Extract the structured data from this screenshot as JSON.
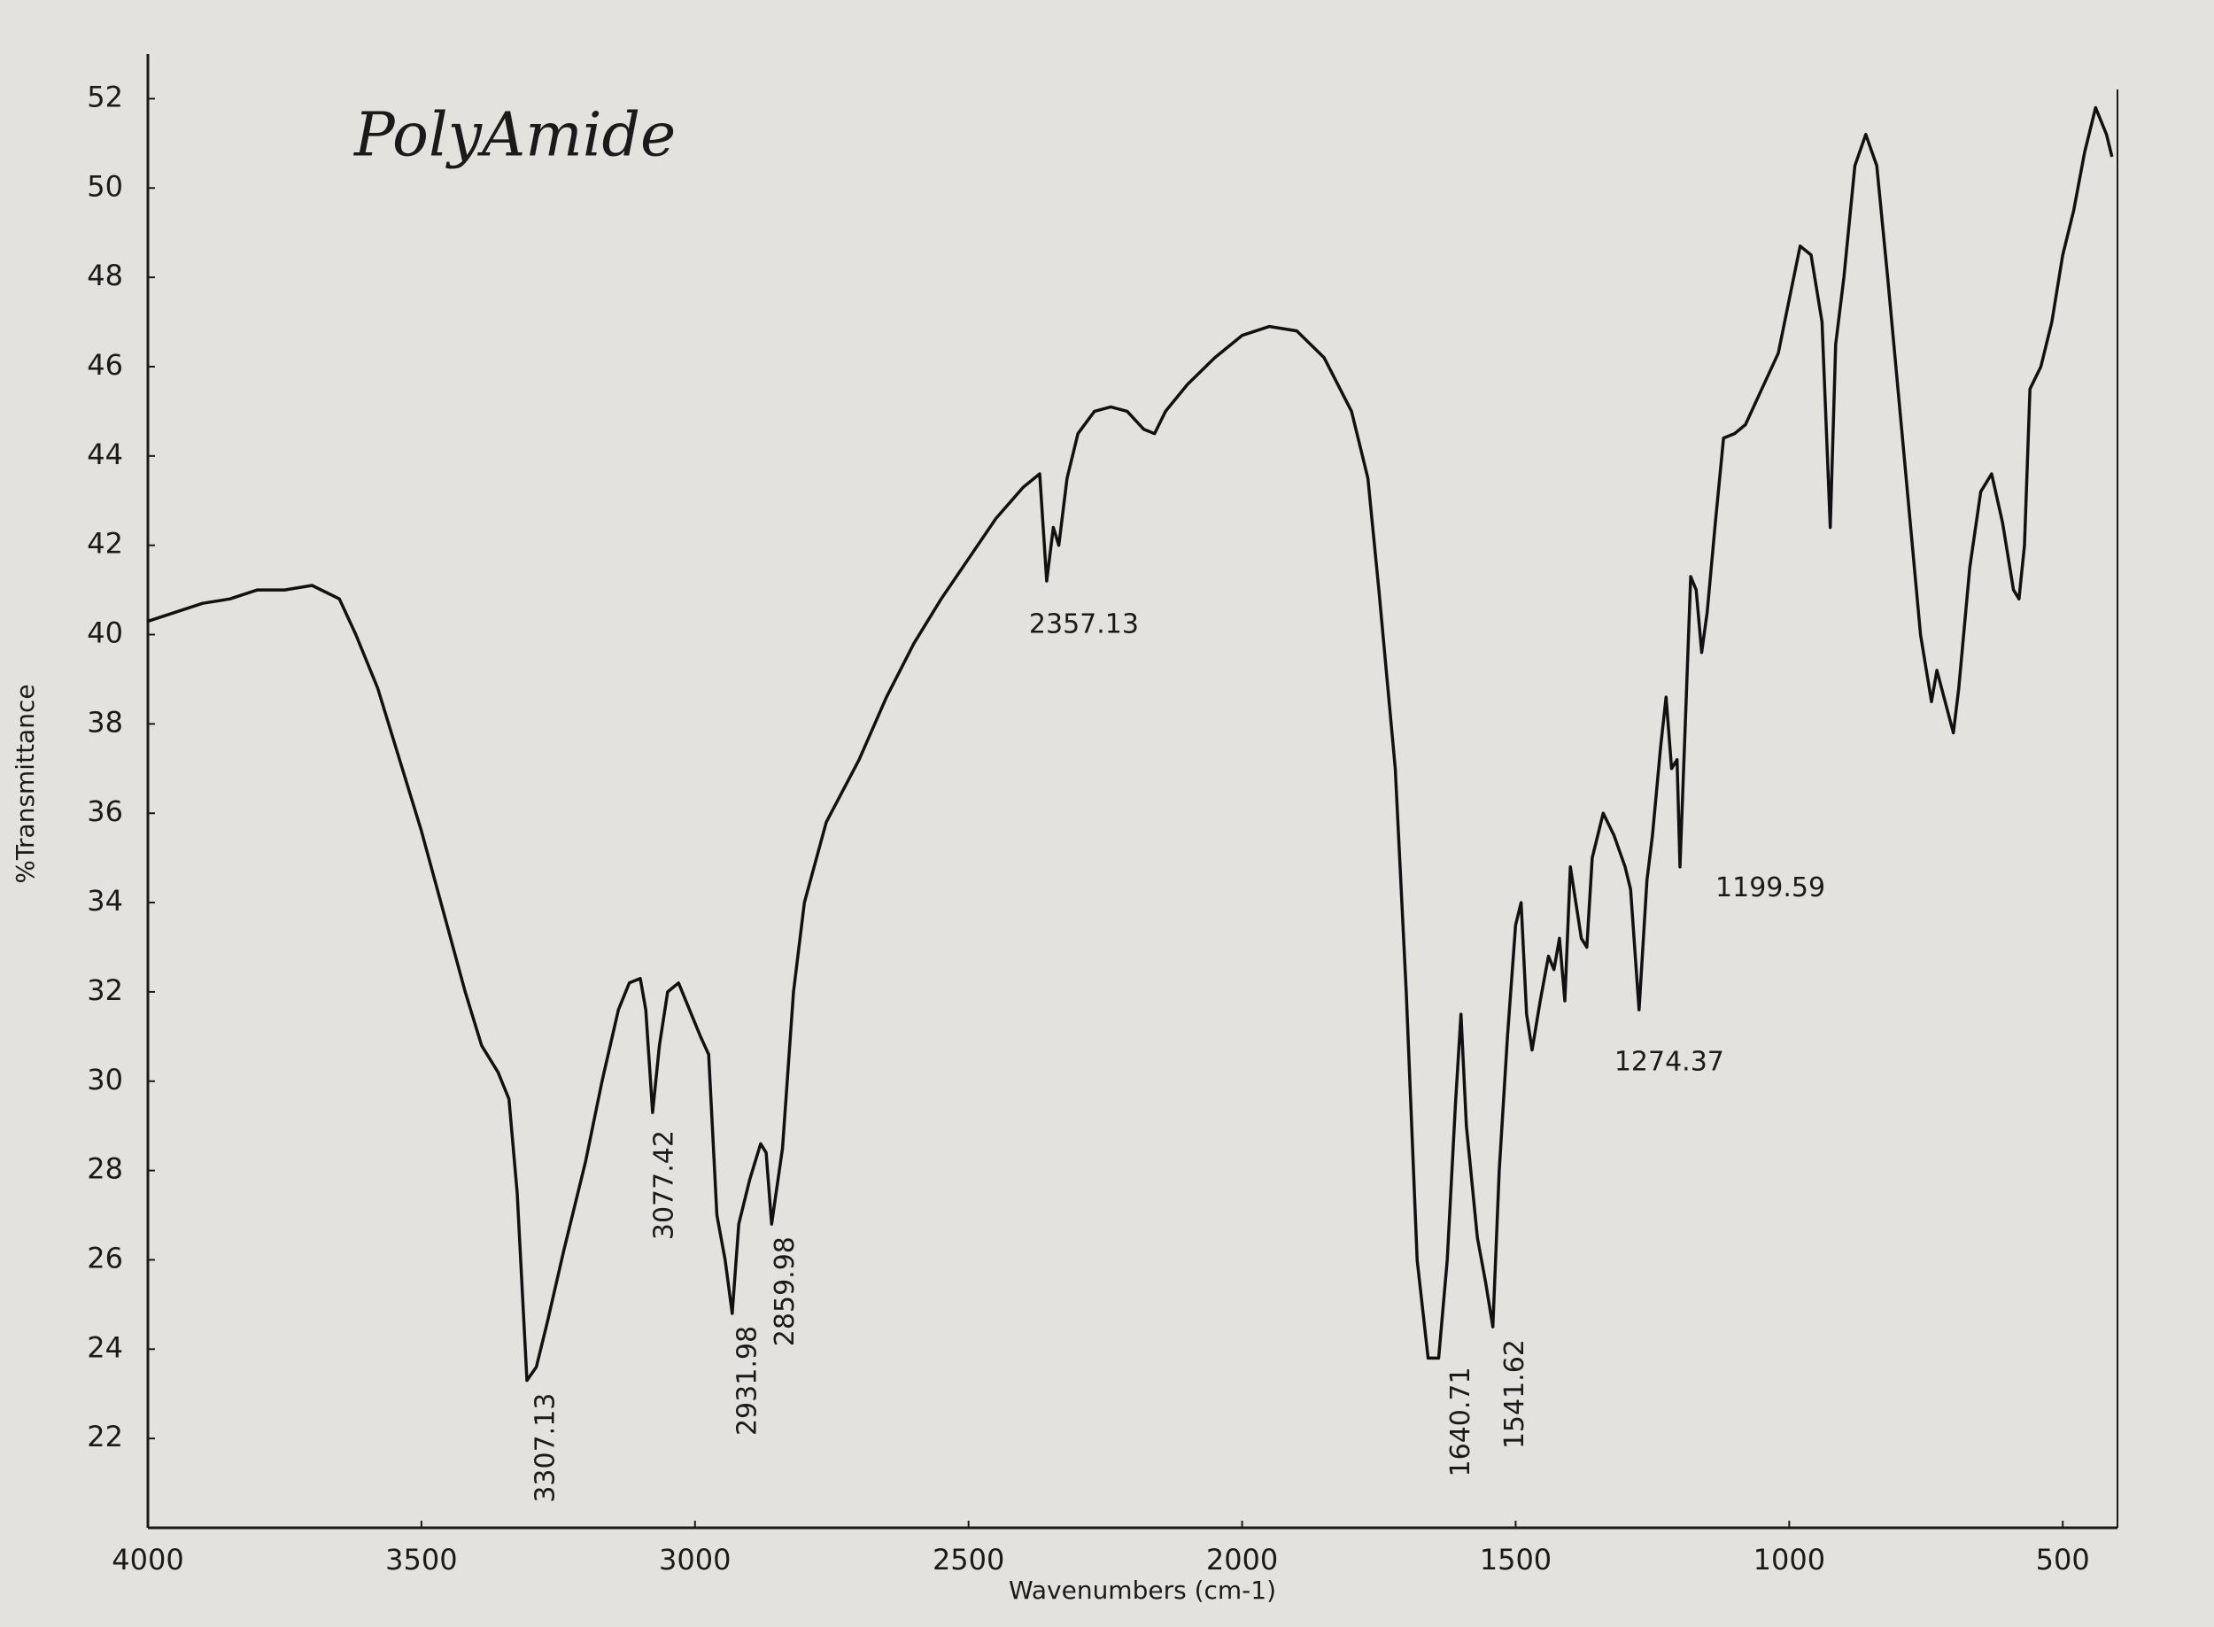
{
  "chart_data": {
    "type": "line",
    "title": "PolyAmide",
    "x_label": "Wavenumbers (cm-1)",
    "y_label": "%Transmittance",
    "xlim": [
      4000,
      400
    ],
    "ylim": [
      20,
      53
    ],
    "xticks": [
      4000,
      3500,
      3000,
      2500,
      2000,
      1500,
      1000,
      500
    ],
    "yticks": [
      22,
      24,
      26,
      28,
      30,
      32,
      34,
      36,
      38,
      40,
      42,
      44,
      46,
      48,
      50,
      52
    ],
    "grid": false,
    "color": "#111111",
    "x": [
      4000,
      3950,
      3900,
      3850,
      3800,
      3750,
      3700,
      3650,
      3620,
      3580,
      3540,
      3500,
      3460,
      3420,
      3390,
      3360,
      3340,
      3325,
      3307.13,
      3290,
      3270,
      3240,
      3200,
      3170,
      3140,
      3120,
      3100,
      3090,
      3077.42,
      3065,
      3050,
      3030,
      3010,
      2990,
      2975,
      2960,
      2945,
      2931.98,
      2920,
      2900,
      2880,
      2870,
      2859.98,
      2840,
      2820,
      2800,
      2760,
      2700,
      2650,
      2600,
      2550,
      2500,
      2450,
      2400,
      2370,
      2357.13,
      2345,
      2335,
      2320,
      2300,
      2270,
      2240,
      2210,
      2180,
      2160,
      2140,
      2100,
      2050,
      2000,
      1950,
      1900,
      1850,
      1800,
      1770,
      1750,
      1720,
      1700,
      1680,
      1660,
      1640.71,
      1625,
      1610,
      1600,
      1590,
      1570,
      1555,
      1541.62,
      1530,
      1515,
      1500,
      1490,
      1480,
      1470,
      1455,
      1440,
      1430,
      1420,
      1410,
      1400,
      1390,
      1380,
      1370,
      1360,
      1340,
      1320,
      1300,
      1290,
      1274.37,
      1260,
      1250,
      1235,
      1225,
      1215,
      1205,
      1199.59,
      1190,
      1180,
      1170,
      1160,
      1150,
      1135,
      1120,
      1100,
      1080,
      1050,
      1020,
      1000,
      980,
      960,
      940,
      925,
      915,
      900,
      880,
      860,
      840,
      820,
      790,
      760,
      740,
      730,
      715,
      700,
      690,
      670,
      650,
      630,
      610,
      590,
      580,
      570,
      560,
      540,
      520,
      500,
      480,
      460,
      440,
      420,
      410
    ],
    "values": [
      40.3,
      40.5,
      40.7,
      40.8,
      41.0,
      41.0,
      41.1,
      40.8,
      40.0,
      38.8,
      37.2,
      35.6,
      33.8,
      32.0,
      30.8,
      30.2,
      29.6,
      27.5,
      23.3,
      23.6,
      24.6,
      26.2,
      28.2,
      30.0,
      31.6,
      32.2,
      32.3,
      31.6,
      29.3,
      30.8,
      32.0,
      32.2,
      31.6,
      31.0,
      30.6,
      27.0,
      26.0,
      24.8,
      26.8,
      27.8,
      28.6,
      28.4,
      26.8,
      28.5,
      32.0,
      34.0,
      35.8,
      37.2,
      38.6,
      39.8,
      40.8,
      41.7,
      42.6,
      43.3,
      43.6,
      41.2,
      42.4,
      42.0,
      43.5,
      44.5,
      45.0,
      45.1,
      45.0,
      44.6,
      44.5,
      45.0,
      45.6,
      46.2,
      46.7,
      46.9,
      46.8,
      46.2,
      45.0,
      43.5,
      41.0,
      37.0,
      32.0,
      26.0,
      23.8,
      23.8,
      26.0,
      29.5,
      31.5,
      29.0,
      26.5,
      25.5,
      24.5,
      28.0,
      31.0,
      33.5,
      34.0,
      31.5,
      30.7,
      31.8,
      32.8,
      32.5,
      33.2,
      31.8,
      34.8,
      34.0,
      33.2,
      33.0,
      35.0,
      36.0,
      35.5,
      34.8,
      34.3,
      31.6,
      34.5,
      35.5,
      37.5,
      38.6,
      37.0,
      37.2,
      34.8,
      38.0,
      41.3,
      41.0,
      39.6,
      40.5,
      42.5,
      44.4,
      44.5,
      44.7,
      45.5,
      46.3,
      47.5,
      48.7,
      48.5,
      47.0,
      42.4,
      46.5,
      48.0,
      50.5,
      51.2,
      50.5,
      48.0,
      44.0,
      40.0,
      38.5,
      39.2,
      38.5,
      37.8,
      38.8,
      41.5,
      43.2,
      43.6,
      42.5,
      41.0,
      40.8,
      42.0,
      45.5,
      46.0,
      47.0,
      48.5,
      49.5,
      50.8,
      51.8,
      51.2,
      50.7
    ],
    "annotations": [
      {
        "text": "3307.13",
        "x": 3307.13,
        "y": 23.3
      },
      {
        "text": "3077.42",
        "x": 3077.42,
        "y": 29.3
      },
      {
        "text": "2931.98",
        "x": 2931.98,
        "y": 24.8
      },
      {
        "text": "2859.98",
        "x": 2859.98,
        "y": 26.8
      },
      {
        "text": "2357.13",
        "x": 2357.13,
        "y": 41.2
      },
      {
        "text": "1640.71",
        "x": 1640.71,
        "y": 23.8
      },
      {
        "text": "1541.62",
        "x": 1541.62,
        "y": 24.5
      },
      {
        "text": "1274.37",
        "x": 1274.37,
        "y": 31.6
      },
      {
        "text": "1199.59",
        "x": 1199.59,
        "y": 34.8
      }
    ]
  }
}
